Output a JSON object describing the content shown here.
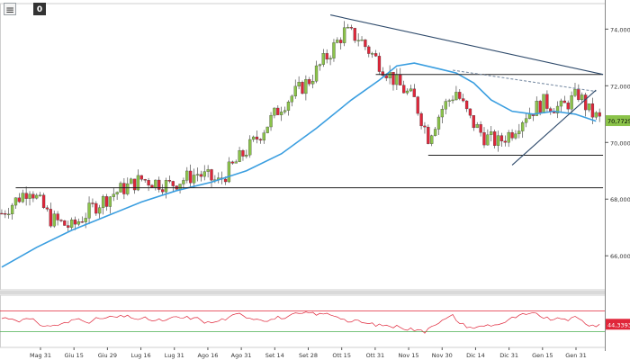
{
  "toolbar": {
    "close_label": "0"
  },
  "colors": {
    "up": "#8bc34a",
    "down": "#e0263a",
    "ma": "#3a9ee0",
    "trend": "#2e4a6b",
    "level": "#222222",
    "osc": "#e0263a",
    "osc_upper": "#e0263a",
    "osc_lower": "#4caf50",
    "price_tag": "#8bc34a",
    "osc_tag": "#e0263a"
  },
  "chart_data": [
    {
      "type": "candlestick",
      "title": "",
      "x_ticks": [
        "Mag 31",
        "Giu 15",
        "Giu 29",
        "Lug 16",
        "Lug 31",
        "Ago 16",
        "Ago 31",
        "Set 14",
        "Set 28",
        "Ott 15",
        "Ott 31",
        "Nov 15",
        "Nov 30",
        "Dic 14",
        "Dic 31",
        "Gen 15",
        "Gen 31"
      ],
      "y_ticks": [
        "74,0000",
        "72,0000",
        "70,0000",
        "68,0000",
        "66,0000"
      ],
      "y_tick_values": [
        74,
        72,
        70,
        68,
        66
      ],
      "ylim": [
        64.8,
        74.9
      ],
      "last_price_label": "70,7725",
      "last_price": 70.77,
      "moving_average": {
        "points": [
          [
            0,
            65.6
          ],
          [
            10,
            66.3
          ],
          [
            20,
            66.9
          ],
          [
            30,
            67.4
          ],
          [
            40,
            67.9
          ],
          [
            50,
            68.3
          ],
          [
            60,
            68.6
          ],
          [
            70,
            69.0
          ],
          [
            80,
            69.6
          ],
          [
            90,
            70.5
          ],
          [
            100,
            71.5
          ],
          [
            108,
            72.2
          ],
          [
            113,
            72.7
          ],
          [
            118,
            72.8
          ],
          [
            125,
            72.6
          ],
          [
            130,
            72.45
          ],
          [
            135,
            72.1
          ],
          [
            140,
            71.5
          ],
          [
            146,
            71.1
          ],
          [
            152,
            71.0
          ],
          [
            158,
            71.1
          ],
          [
            164,
            71.0
          ],
          [
            170,
            70.75
          ]
        ]
      },
      "trendlines": [
        {
          "style": "solid",
          "points": [
            [
              94,
              74.5
            ],
            [
              172,
              72.4
            ]
          ]
        },
        {
          "style": "dashed",
          "points": [
            [
              129,
              72.55
            ],
            [
              170,
              71.8
            ]
          ]
        },
        {
          "style": "solid",
          "points": [
            [
              146,
              69.2
            ],
            [
              170,
              71.85
            ]
          ]
        }
      ],
      "horizontal_levels": [
        {
          "value": 68.4,
          "from": 4,
          "to": 172
        },
        {
          "value": 72.4,
          "from": 107,
          "to": 172
        },
        {
          "value": 69.55,
          "from": 122,
          "to": 172
        }
      ]
    },
    {
      "type": "line",
      "title": "",
      "ylim": [
        0,
        100
      ],
      "upper_band": 70,
      "lower_band": 30,
      "last_value_label": "44,3393",
      "last_value": 44.34
    }
  ]
}
